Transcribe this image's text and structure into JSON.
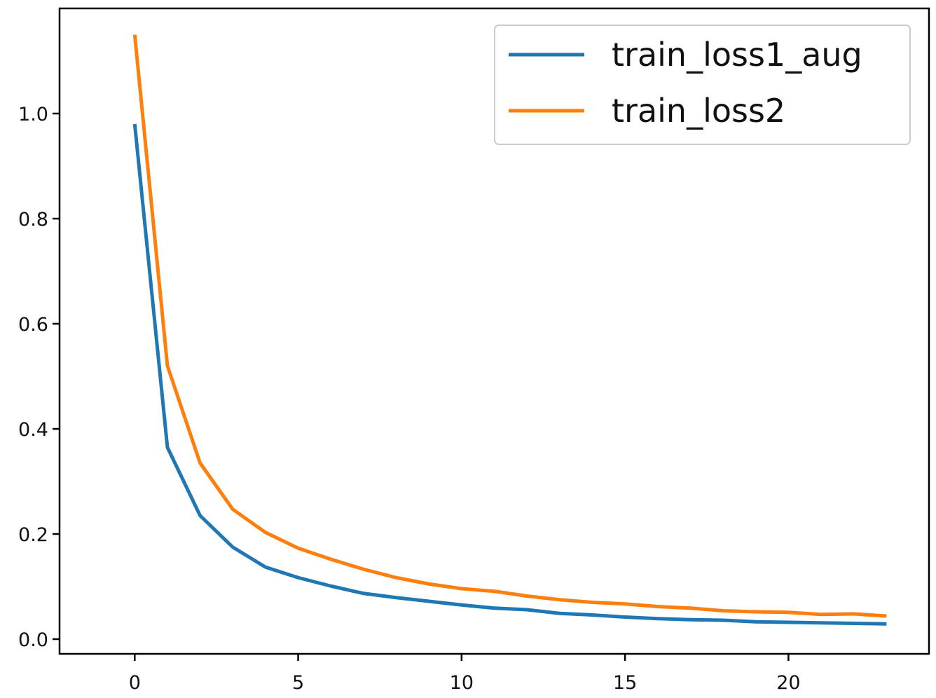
{
  "chart_data": {
    "type": "line",
    "title": "",
    "xlabel": "",
    "ylabel": "",
    "xlim": [
      -2.3,
      24.3
    ],
    "ylim": [
      -0.028,
      1.2
    ],
    "x_ticks": [
      0,
      5,
      10,
      15,
      20
    ],
    "x_tick_labels": [
      "0",
      "5",
      "10",
      "15",
      "20"
    ],
    "y_ticks": [
      0.0,
      0.2,
      0.4,
      0.6,
      0.8,
      1.0
    ],
    "y_tick_labels": [
      "0.0",
      "0.2",
      "0.4",
      "0.6",
      "0.8",
      "1.0"
    ],
    "grid": false,
    "legend_position": "upper right",
    "x": [
      0,
      1,
      2,
      3,
      4,
      5,
      6,
      7,
      8,
      9,
      10,
      11,
      12,
      13,
      14,
      15,
      16,
      17,
      18,
      19,
      20,
      21,
      22,
      23
    ],
    "series": [
      {
        "name": "train_loss1_aug",
        "color": "#1f77b4",
        "values": [
          0.98,
          0.365,
          0.235,
          0.175,
          0.137,
          0.117,
          0.101,
          0.087,
          0.079,
          0.072,
          0.065,
          0.059,
          0.056,
          0.049,
          0.046,
          0.042,
          0.039,
          0.037,
          0.036,
          0.033,
          0.032,
          0.031,
          0.03,
          0.029
        ]
      },
      {
        "name": "train_loss2",
        "color": "#ff7f0e",
        "values": [
          1.15,
          0.52,
          0.335,
          0.247,
          0.203,
          0.173,
          0.152,
          0.133,
          0.117,
          0.105,
          0.096,
          0.091,
          0.082,
          0.075,
          0.07,
          0.067,
          0.062,
          0.059,
          0.054,
          0.052,
          0.051,
          0.047,
          0.048,
          0.044
        ]
      }
    ]
  }
}
